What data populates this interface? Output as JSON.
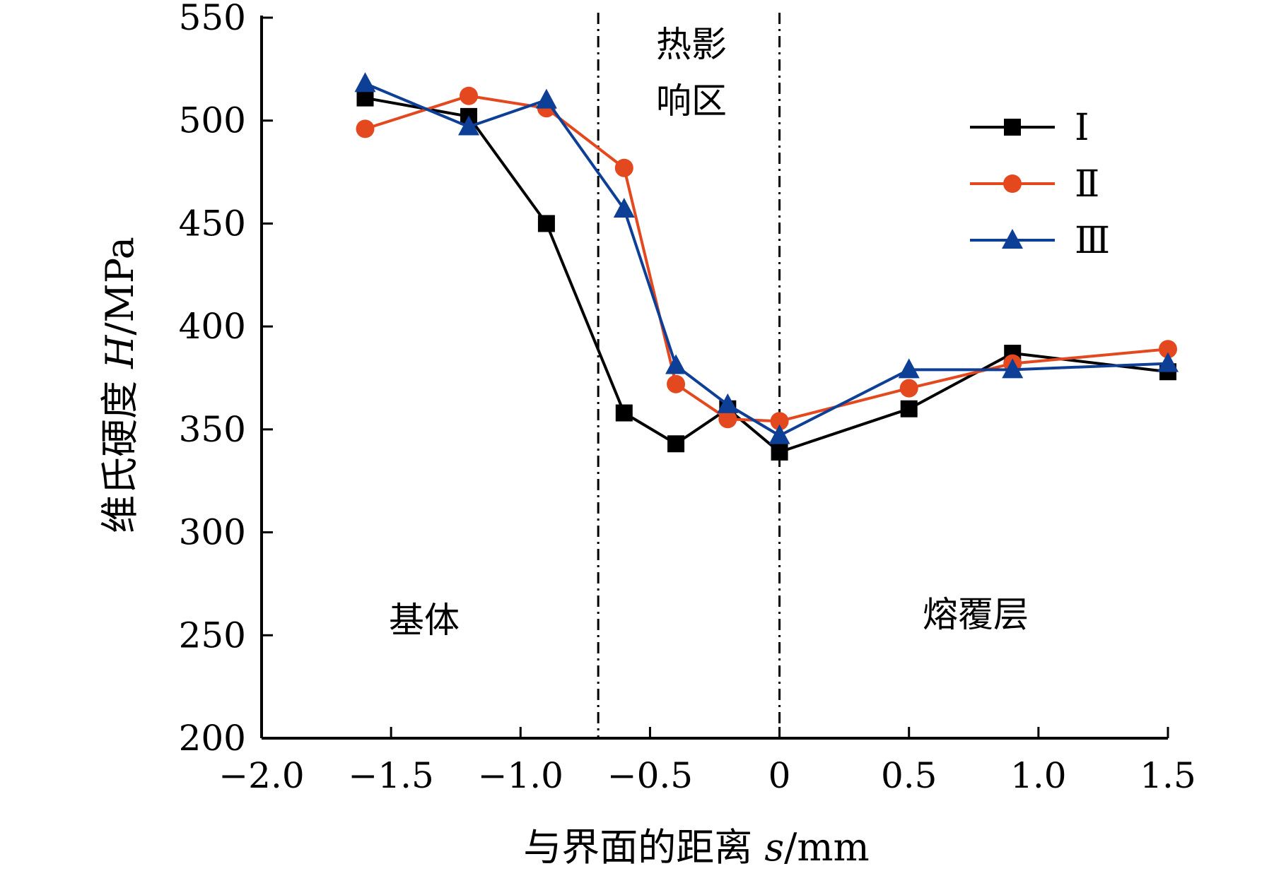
{
  "chart_data": {
    "type": "line",
    "title": "",
    "xlabel_prefix": "与界面的距离 ",
    "xlabel_symbol": "s",
    "xlabel_unit": "/mm",
    "ylabel_prefix": "维氏硬度 ",
    "ylabel_symbol": "H",
    "ylabel_unit": "/MPa",
    "xlim": [
      -2.0,
      1.5
    ],
    "ylim": [
      200,
      550
    ],
    "x_ticks": [
      -2.0,
      -1.5,
      -1.0,
      -0.5,
      0,
      0.5,
      1.0,
      1.5
    ],
    "x_tick_labels": [
      "−2.0",
      "−1.5",
      "−1.0",
      "−0.5",
      "0",
      "0.5",
      "1.0",
      "1.5"
    ],
    "y_ticks": [
      200,
      250,
      300,
      350,
      400,
      450,
      500,
      550
    ],
    "y_tick_labels": [
      "200",
      "250",
      "300",
      "350",
      "400",
      "450",
      "500",
      "550"
    ],
    "grid": false,
    "legend_position": "top-right",
    "reference_lines_x": [
      -0.7,
      0
    ],
    "regions": [
      {
        "lines": [
          "基体"
        ]
      },
      {
        "lines": [
          "热影",
          "响区"
        ]
      },
      {
        "lines": [
          "熔覆层"
        ]
      }
    ],
    "series": [
      {
        "name": "Ⅰ",
        "color": "#000000",
        "marker": "square",
        "x": [
          -1.6,
          -1.2,
          -0.9,
          -0.6,
          -0.4,
          -0.2,
          0,
          0.5,
          0.9,
          1.5
        ],
        "y": [
          511,
          502,
          450,
          358,
          343,
          360,
          339,
          360,
          387,
          378
        ]
      },
      {
        "name": "Ⅱ",
        "color": "#E4481F",
        "marker": "circle",
        "x": [
          -1.6,
          -1.2,
          -0.9,
          -0.6,
          -0.4,
          -0.2,
          0,
          0.5,
          0.9,
          1.5
        ],
        "y": [
          496,
          512,
          506,
          477,
          372,
          355,
          354,
          370,
          382,
          389
        ]
      },
      {
        "name": "Ⅲ",
        "color": "#0E3F96",
        "marker": "triangle",
        "x": [
          -1.6,
          -1.2,
          -0.9,
          -0.6,
          -0.4,
          -0.2,
          0,
          0.5,
          0.9,
          1.5
        ],
        "y": [
          518,
          497,
          510,
          457,
          381,
          362,
          347,
          379,
          379,
          382
        ]
      }
    ]
  }
}
